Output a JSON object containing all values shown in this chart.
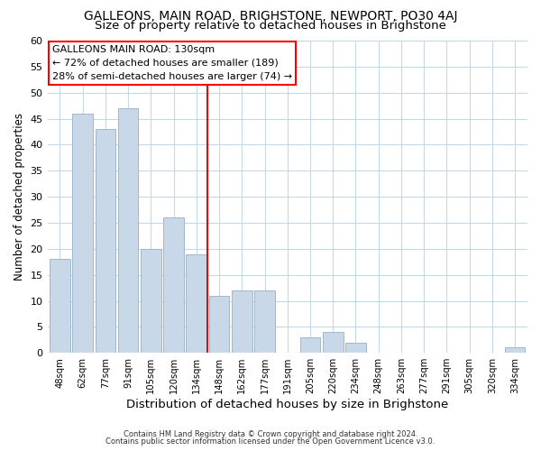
{
  "title": "GALLEONS, MAIN ROAD, BRIGHSTONE, NEWPORT, PO30 4AJ",
  "subtitle": "Size of property relative to detached houses in Brighstone",
  "xlabel": "Distribution of detached houses by size in Brighstone",
  "ylabel": "Number of detached properties",
  "footer_line1": "Contains HM Land Registry data © Crown copyright and database right 2024.",
  "footer_line2": "Contains public sector information licensed under the Open Government Licence v3.0.",
  "bar_labels": [
    "48sqm",
    "62sqm",
    "77sqm",
    "91sqm",
    "105sqm",
    "120sqm",
    "134sqm",
    "148sqm",
    "162sqm",
    "177sqm",
    "191sqm",
    "205sqm",
    "220sqm",
    "234sqm",
    "248sqm",
    "263sqm",
    "277sqm",
    "291sqm",
    "305sqm",
    "320sqm",
    "334sqm"
  ],
  "bar_values": [
    18,
    46,
    43,
    47,
    20,
    26,
    19,
    11,
    12,
    12,
    0,
    3,
    4,
    2,
    0,
    0,
    0,
    0,
    0,
    0,
    1
  ],
  "bar_color": "#c8d8e8",
  "bar_edge_color": "#a0b8cc",
  "vline_x_index": 6,
  "vline_color": "red",
  "annotation_title": "GALLEONS MAIN ROAD: 130sqm",
  "annotation_line1": "← 72% of detached houses are smaller (189)",
  "annotation_line2": "28% of semi-detached houses are larger (74) →",
  "annotation_box_color": "white",
  "annotation_box_edge_color": "red",
  "ylim": [
    0,
    60
  ],
  "yticks": [
    0,
    5,
    10,
    15,
    20,
    25,
    30,
    35,
    40,
    45,
    50,
    55,
    60
  ],
  "bg_color": "white",
  "grid_color": "#c5d8e8",
  "title_fontsize": 10,
  "subtitle_fontsize": 9.5,
  "xlabel_fontsize": 9.5,
  "ylabel_fontsize": 8.5,
  "footer_fontsize": 6.0
}
